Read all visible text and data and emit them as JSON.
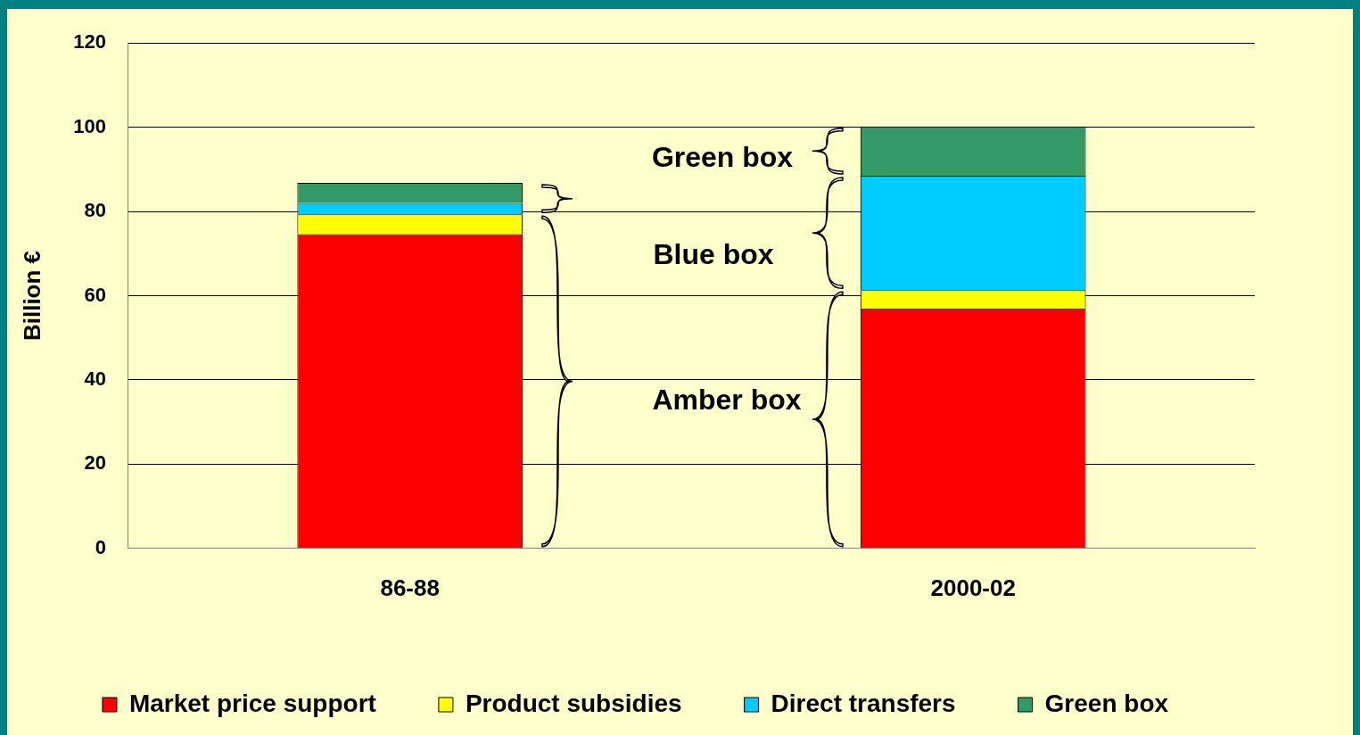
{
  "chart_data": {
    "type": "bar",
    "stacked": true,
    "ylabel": "Billion €",
    "categories": [
      "86-88",
      "2000-02"
    ],
    "series": [
      {
        "name": "Market price support",
        "color": "#ff0000",
        "values": [
          74.6,
          57.0
        ]
      },
      {
        "name": "Product subsidies",
        "color": "#ffff00",
        "values": [
          4.7,
          4.3
        ]
      },
      {
        "name": "Direct transfers",
        "color": "#00ccff",
        "values": [
          2.7,
          27.2
        ]
      },
      {
        "name": "Green box",
        "color": "#339966",
        "values": [
          4.8,
          11.7
        ]
      }
    ],
    "ylim": [
      0,
      120
    ],
    "yticks": [
      0,
      20,
      40,
      60,
      80,
      100,
      120
    ],
    "grid": "y",
    "legend": "bottom",
    "annotations": [
      "Green box",
      "Blue box",
      "Amber box"
    ]
  }
}
